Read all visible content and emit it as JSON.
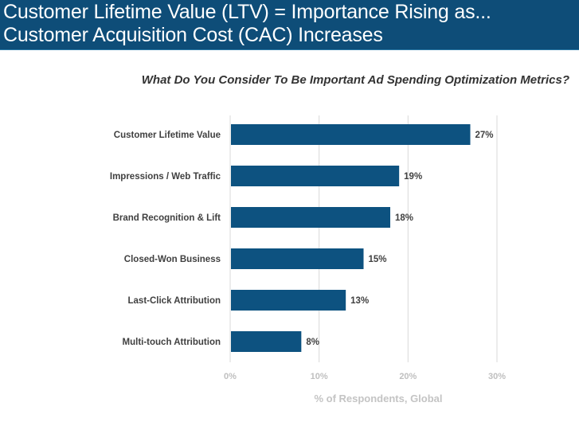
{
  "header": {
    "title_line1": "Customer Lifetime Value (LTV) = Importance Rising as...",
    "title_line2": "Customer Acquisition Cost (CAC) Increases"
  },
  "colors": {
    "header_bg": "#0e4d78",
    "bar": "#0d5280",
    "gridline": "#d9d9d9",
    "tick_label": "#bfbfbf",
    "category_label": "#404040",
    "value_label": "#404040"
  },
  "chart_data": {
    "type": "bar",
    "orientation": "horizontal",
    "title": "What Do You Consider To Be Important Ad Spending Optimization Metrics?",
    "categories": [
      "Customer Lifetime Value",
      "Impressions / Web Traffic",
      "Brand Recognition & Lift",
      "Closed-Won Business",
      "Last-Click Attribution",
      "Multi-touch Attribution"
    ],
    "values": [
      27,
      19,
      18,
      15,
      13,
      8
    ],
    "value_labels": [
      "27%",
      "19%",
      "18%",
      "15%",
      "13%",
      "8%"
    ],
    "xlabel": "% of Respondents, Global",
    "ylabel": "",
    "xlim": [
      0,
      30
    ],
    "xticks": [
      0,
      10,
      20,
      30
    ],
    "xtick_labels": [
      "0%",
      "10%",
      "20%",
      "30%"
    ],
    "grid": true,
    "legend": "none"
  }
}
